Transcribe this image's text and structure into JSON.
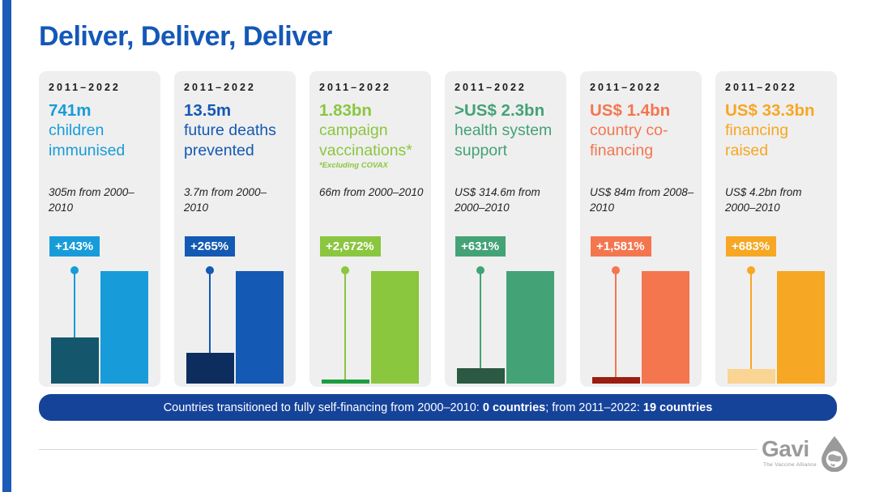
{
  "slide": {
    "title": "Deliver, Deliver, Deliver",
    "title_color": "#1458B8",
    "stripe_color": "#1A5AB8",
    "card_bg": "#EFEFEF"
  },
  "cards": [
    {
      "period": "2011–2022",
      "value": "741m",
      "label": "children immunised",
      "comparison": "305m from 2000–2010",
      "growth": "+143%",
      "accent": "#189CD9",
      "prev_color": "#14576C"
    },
    {
      "period": "2011–2022",
      "value": "13.5m",
      "label": "future deaths prevented",
      "comparison": "3.7m from 2000–2010",
      "growth": "+265%",
      "accent": "#1459B3",
      "prev_color": "#0C2D5E"
    },
    {
      "period": "2011–2022",
      "value": "1.83bn",
      "label": "campaign vaccinations*",
      "note": "*Excluding COVAX",
      "comparison": "66m from 2000–2010",
      "growth": "+2,672%",
      "accent": "#8BC63F",
      "prev_color": "#1E9C41"
    },
    {
      "period": "2011–2022",
      "value": ">US$ 2.3bn",
      "label": "health system support",
      "comparison": "US$ 314.6m from 2000–2010",
      "growth": "+631%",
      "accent": "#44A277",
      "prev_color": "#2B5941"
    },
    {
      "period": "2011–2022",
      "value": "US$ 1.4bn",
      "label": "country co-financing",
      "comparison": "US$ 84m from 2008–2010",
      "growth": "+1,581%",
      "accent": "#F4764F",
      "prev_color": "#9B1D10"
    },
    {
      "period": "2011–2022",
      "value": "US$ 33.3bn",
      "label": "financing raised",
      "comparison": "US$ 4.2bn from 2000–2010",
      "growth": "+683%",
      "accent": "#F6A723",
      "prev_color": "#FAD492"
    }
  ],
  "chart_data": [
    {
      "type": "bar",
      "title": "children immunised (millions)",
      "categories": [
        "2000–2010",
        "2011–2022"
      ],
      "values": [
        305,
        741
      ],
      "unit": "million children",
      "annotation": "+143%",
      "legend_position": "none",
      "grid": false
    },
    {
      "type": "bar",
      "title": "future deaths prevented (millions)",
      "categories": [
        "2000–2010",
        "2011–2022"
      ],
      "values": [
        3.7,
        13.5
      ],
      "unit": "million deaths",
      "annotation": "+265%",
      "legend_position": "none",
      "grid": false
    },
    {
      "type": "bar",
      "title": "campaign vaccinations, excluding COVAX (millions)",
      "categories": [
        "2000–2010",
        "2011–2022"
      ],
      "values": [
        66,
        1830
      ],
      "unit": "million vaccinations",
      "annotation": "+2,672%",
      "legend_position": "none",
      "grid": false
    },
    {
      "type": "bar",
      "title": "health system support (US$ millions)",
      "categories": [
        "2000–2010",
        "2011–2022"
      ],
      "values": [
        314.6,
        2300
      ],
      "unit": "US$ million",
      "annotation": "+631%",
      "legend_position": "none",
      "grid": false
    },
    {
      "type": "bar",
      "title": "country co-financing (US$ millions)",
      "categories": [
        "2008–2010",
        "2011–2022"
      ],
      "values": [
        84,
        1400
      ],
      "unit": "US$ million",
      "annotation": "+1,581%",
      "legend_position": "none",
      "grid": false
    },
    {
      "type": "bar",
      "title": "financing raised (US$ billions)",
      "categories": [
        "2000–2010",
        "2011–2022"
      ],
      "values": [
        4.2,
        33.3
      ],
      "unit": "US$ billion",
      "annotation": "+683%",
      "legend_position": "none",
      "grid": false
    }
  ],
  "banner": {
    "part1": "Countries transitioned to fully self-financing from 2000–2010: ",
    "bold1": "0 countries",
    "part2": "; from 2011–2022: ",
    "bold2": "19 countries",
    "bg": "#16439A"
  },
  "logo": {
    "wordmark": "Gavi",
    "tagline": "The Vaccine Alliance",
    "color": "#9A9A9A"
  }
}
